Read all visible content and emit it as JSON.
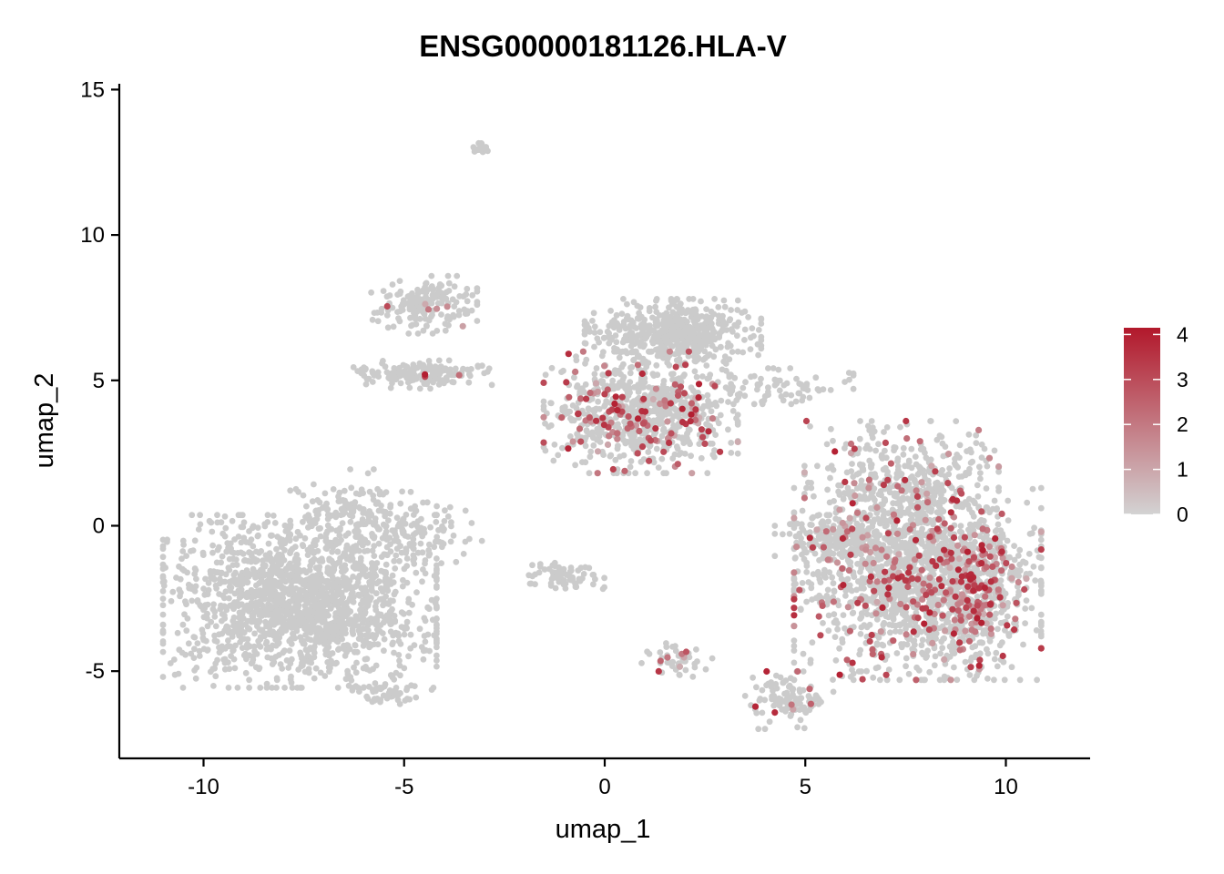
{
  "chart_data": {
    "type": "scatter",
    "title": "ENSG00000181126.HLA-V",
    "xlabel": "umap_1",
    "ylabel": "umap_2",
    "xlim": [
      -12.1,
      12.1
    ],
    "ylim": [
      -8,
      15.2
    ],
    "x_ticks": [
      -10,
      -5,
      0,
      5,
      10
    ],
    "x_tick_labels": [
      "-10",
      "-5",
      "0",
      "5",
      "10"
    ],
    "y_ticks": [
      -5,
      0,
      5,
      10,
      15
    ],
    "y_tick_labels": [
      "-5",
      "0",
      "5",
      "10",
      "15"
    ],
    "grid": false,
    "legend": {
      "placement": "right",
      "type": "colorbar",
      "range": [
        0,
        4.15
      ],
      "ticks": [
        0,
        1,
        2,
        3,
        4
      ],
      "tick_labels": [
        "0",
        "1",
        "2",
        "3",
        "4"
      ],
      "low_color": "#d3d3d3",
      "high_color": "#b2182b"
    },
    "colors": {
      "background_cells": "#cbcbcb",
      "low": "#d3d3d3",
      "high": "#b2182b"
    },
    "clusters": [
      {
        "id": "c-left-main",
        "cx": -7.6,
        "cy": -2.6,
        "sx": 1.55,
        "sy": 1.35,
        "n": 1700,
        "expr_frac": 0.0
      },
      {
        "id": "c-left-upper",
        "cx": -6.3,
        "cy": 0.4,
        "sx": 0.7,
        "sy": 0.7,
        "n": 160,
        "expr_frac": 0.0
      },
      {
        "id": "c-left-tail",
        "cx": -4.6,
        "cy": -0.2,
        "sx": 0.7,
        "sy": 0.5,
        "n": 90,
        "expr_frac": 0.0
      },
      {
        "id": "c-left-streak",
        "cx": -5.3,
        "cy": -5.8,
        "sx": 0.45,
        "sy": 0.18,
        "n": 40,
        "expr_frac": 0.0
      },
      {
        "id": "c-top-small",
        "cx": -3.1,
        "cy": 13.0,
        "sx": 0.12,
        "sy": 0.1,
        "n": 18,
        "expr_frac": 0.0
      },
      {
        "id": "c-upper-mid",
        "cx": -4.5,
        "cy": 7.6,
        "sx": 0.6,
        "sy": 0.45,
        "n": 170,
        "expr_frac": 0.03
      },
      {
        "id": "c-mid-band",
        "cx": -4.5,
        "cy": 5.2,
        "sx": 0.8,
        "sy": 0.22,
        "n": 160,
        "expr_frac": 0.02
      },
      {
        "id": "c-center-top",
        "cx": 1.7,
        "cy": 6.7,
        "sx": 1.0,
        "sy": 0.5,
        "n": 500,
        "expr_frac": 0.0
      },
      {
        "id": "c-center-body",
        "cx": 0.9,
        "cy": 3.9,
        "sx": 1.1,
        "sy": 0.95,
        "n": 800,
        "expr_frac": 0.15
      },
      {
        "id": "c-center-bridge",
        "cx": 4.0,
        "cy": 4.8,
        "sx": 1.0,
        "sy": 0.28,
        "n": 80,
        "expr_frac": 0.0
      },
      {
        "id": "c-center-small",
        "cx": -1.0,
        "cy": -1.8,
        "sx": 0.45,
        "sy": 0.25,
        "n": 70,
        "expr_frac": 0.0
      },
      {
        "id": "c-bottom-small",
        "cx": 1.8,
        "cy": -4.7,
        "sx": 0.4,
        "sy": 0.3,
        "n": 45,
        "expr_frac": 0.15
      },
      {
        "id": "c-bottom-right",
        "cx": 4.6,
        "cy": -6.0,
        "sx": 0.5,
        "sy": 0.45,
        "n": 110,
        "expr_frac": 0.08
      },
      {
        "id": "c-right-main",
        "cx": 7.8,
        "cy": -2.0,
        "sx": 1.4,
        "sy": 1.5,
        "n": 1400,
        "expr_frac": 0.14
      },
      {
        "id": "c-right-upper",
        "cx": 7.4,
        "cy": 1.4,
        "sx": 1.1,
        "sy": 1.0,
        "n": 450,
        "expr_frac": 0.1
      },
      {
        "id": "c-right-edge",
        "cx": 9.3,
        "cy": -2.0,
        "sx": 0.55,
        "sy": 1.3,
        "n": 300,
        "expr_frac": 0.35
      },
      {
        "id": "c-right-left",
        "cx": 6.0,
        "cy": -0.4,
        "sx": 0.8,
        "sy": 0.35,
        "n": 180,
        "expr_frac": 0.05
      }
    ]
  }
}
